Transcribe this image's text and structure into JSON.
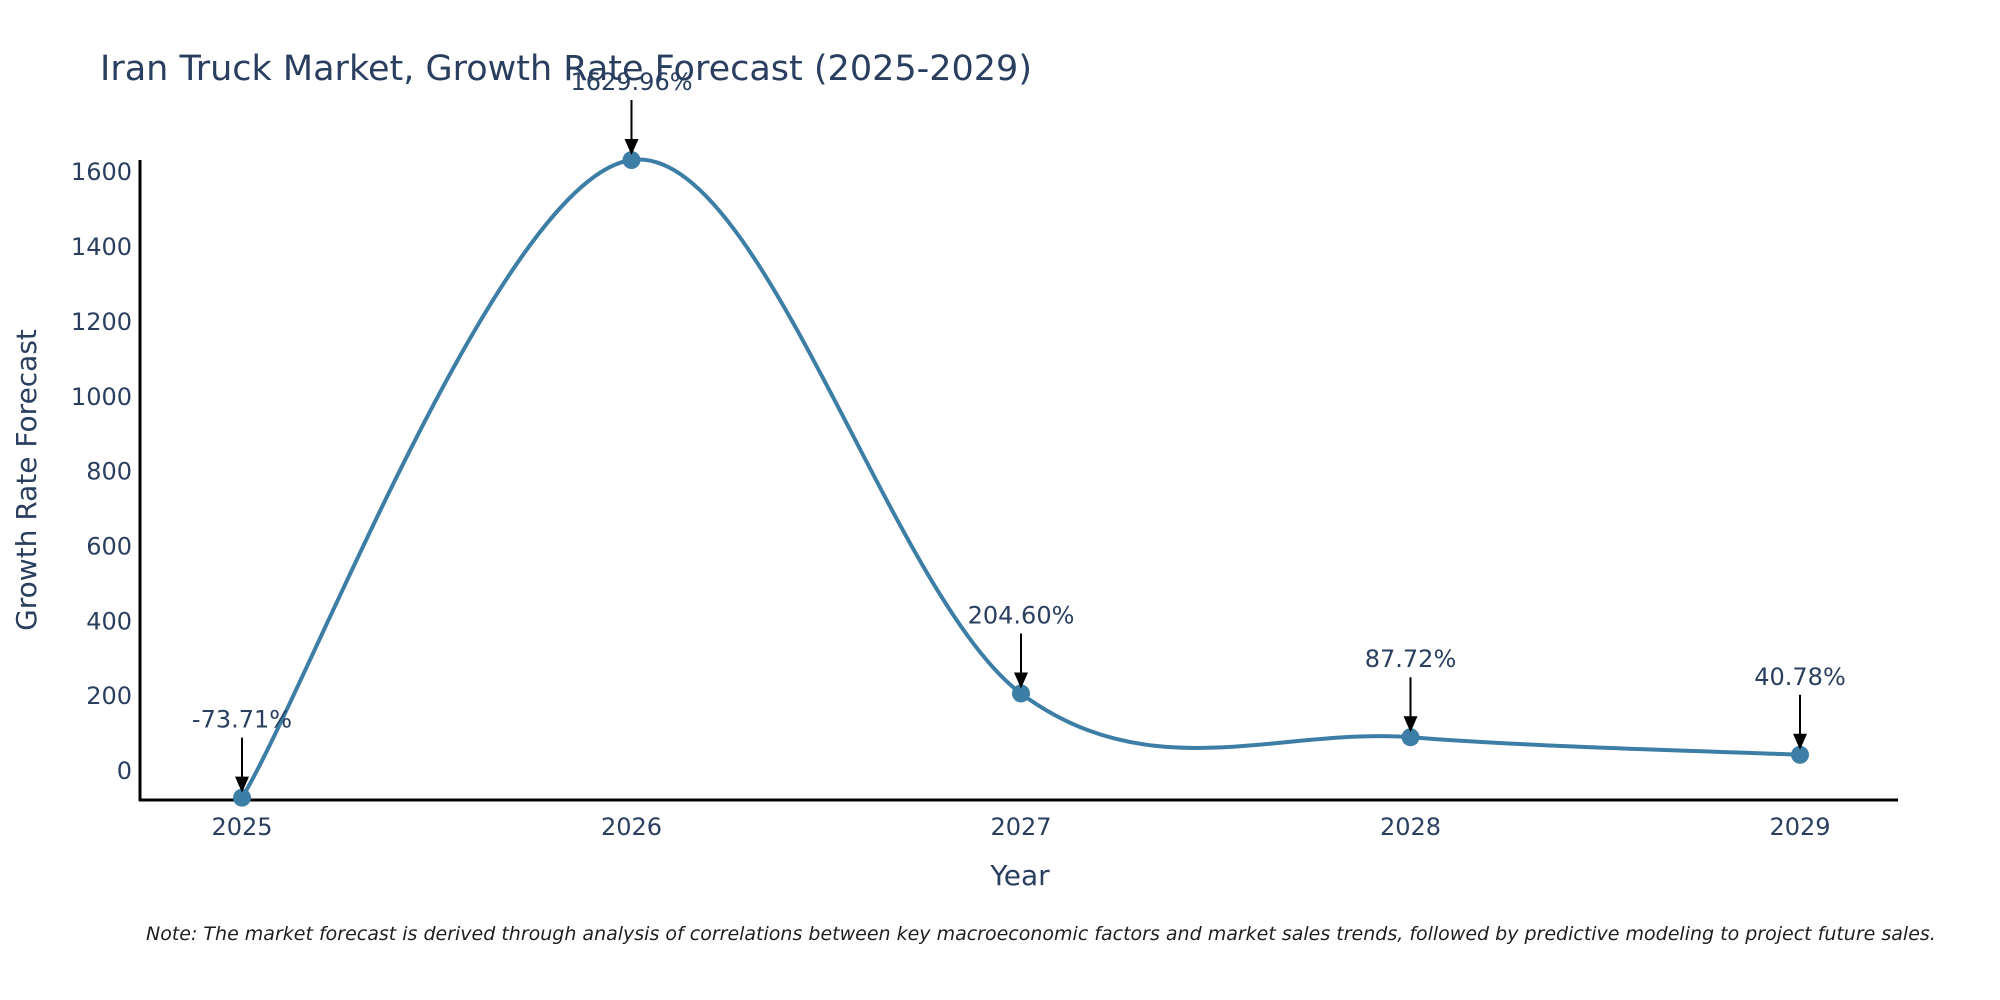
{
  "chart_data": {
    "type": "line",
    "title": "Iran Truck Market, Growth Rate Forecast (2025-2029)",
    "xlabel": "Year",
    "ylabel": "Growth Rate Forecast",
    "categories": [
      "2025",
      "2026",
      "2027",
      "2028",
      "2029"
    ],
    "series": [
      {
        "name": "Growth Rate Forecast",
        "values": [
          -73.71,
          1629.96,
          204.6,
          87.72,
          40.78
        ]
      }
    ],
    "data_labels": [
      "-73.71%",
      "1629.96%",
      "204.60%",
      "87.72%",
      "40.78%"
    ],
    "yticks": [
      "0",
      "200",
      "400",
      "600",
      "800",
      "1000",
      "1200",
      "1400",
      "1600"
    ],
    "ylim": [
      -80,
      1630
    ],
    "grid": false,
    "line_color": "#3d7ea6",
    "note": "Note: The market forecast is derived through analysis of correlations between key macroeconomic factors and market sales trends, followed by predictive modeling to project future sales."
  }
}
